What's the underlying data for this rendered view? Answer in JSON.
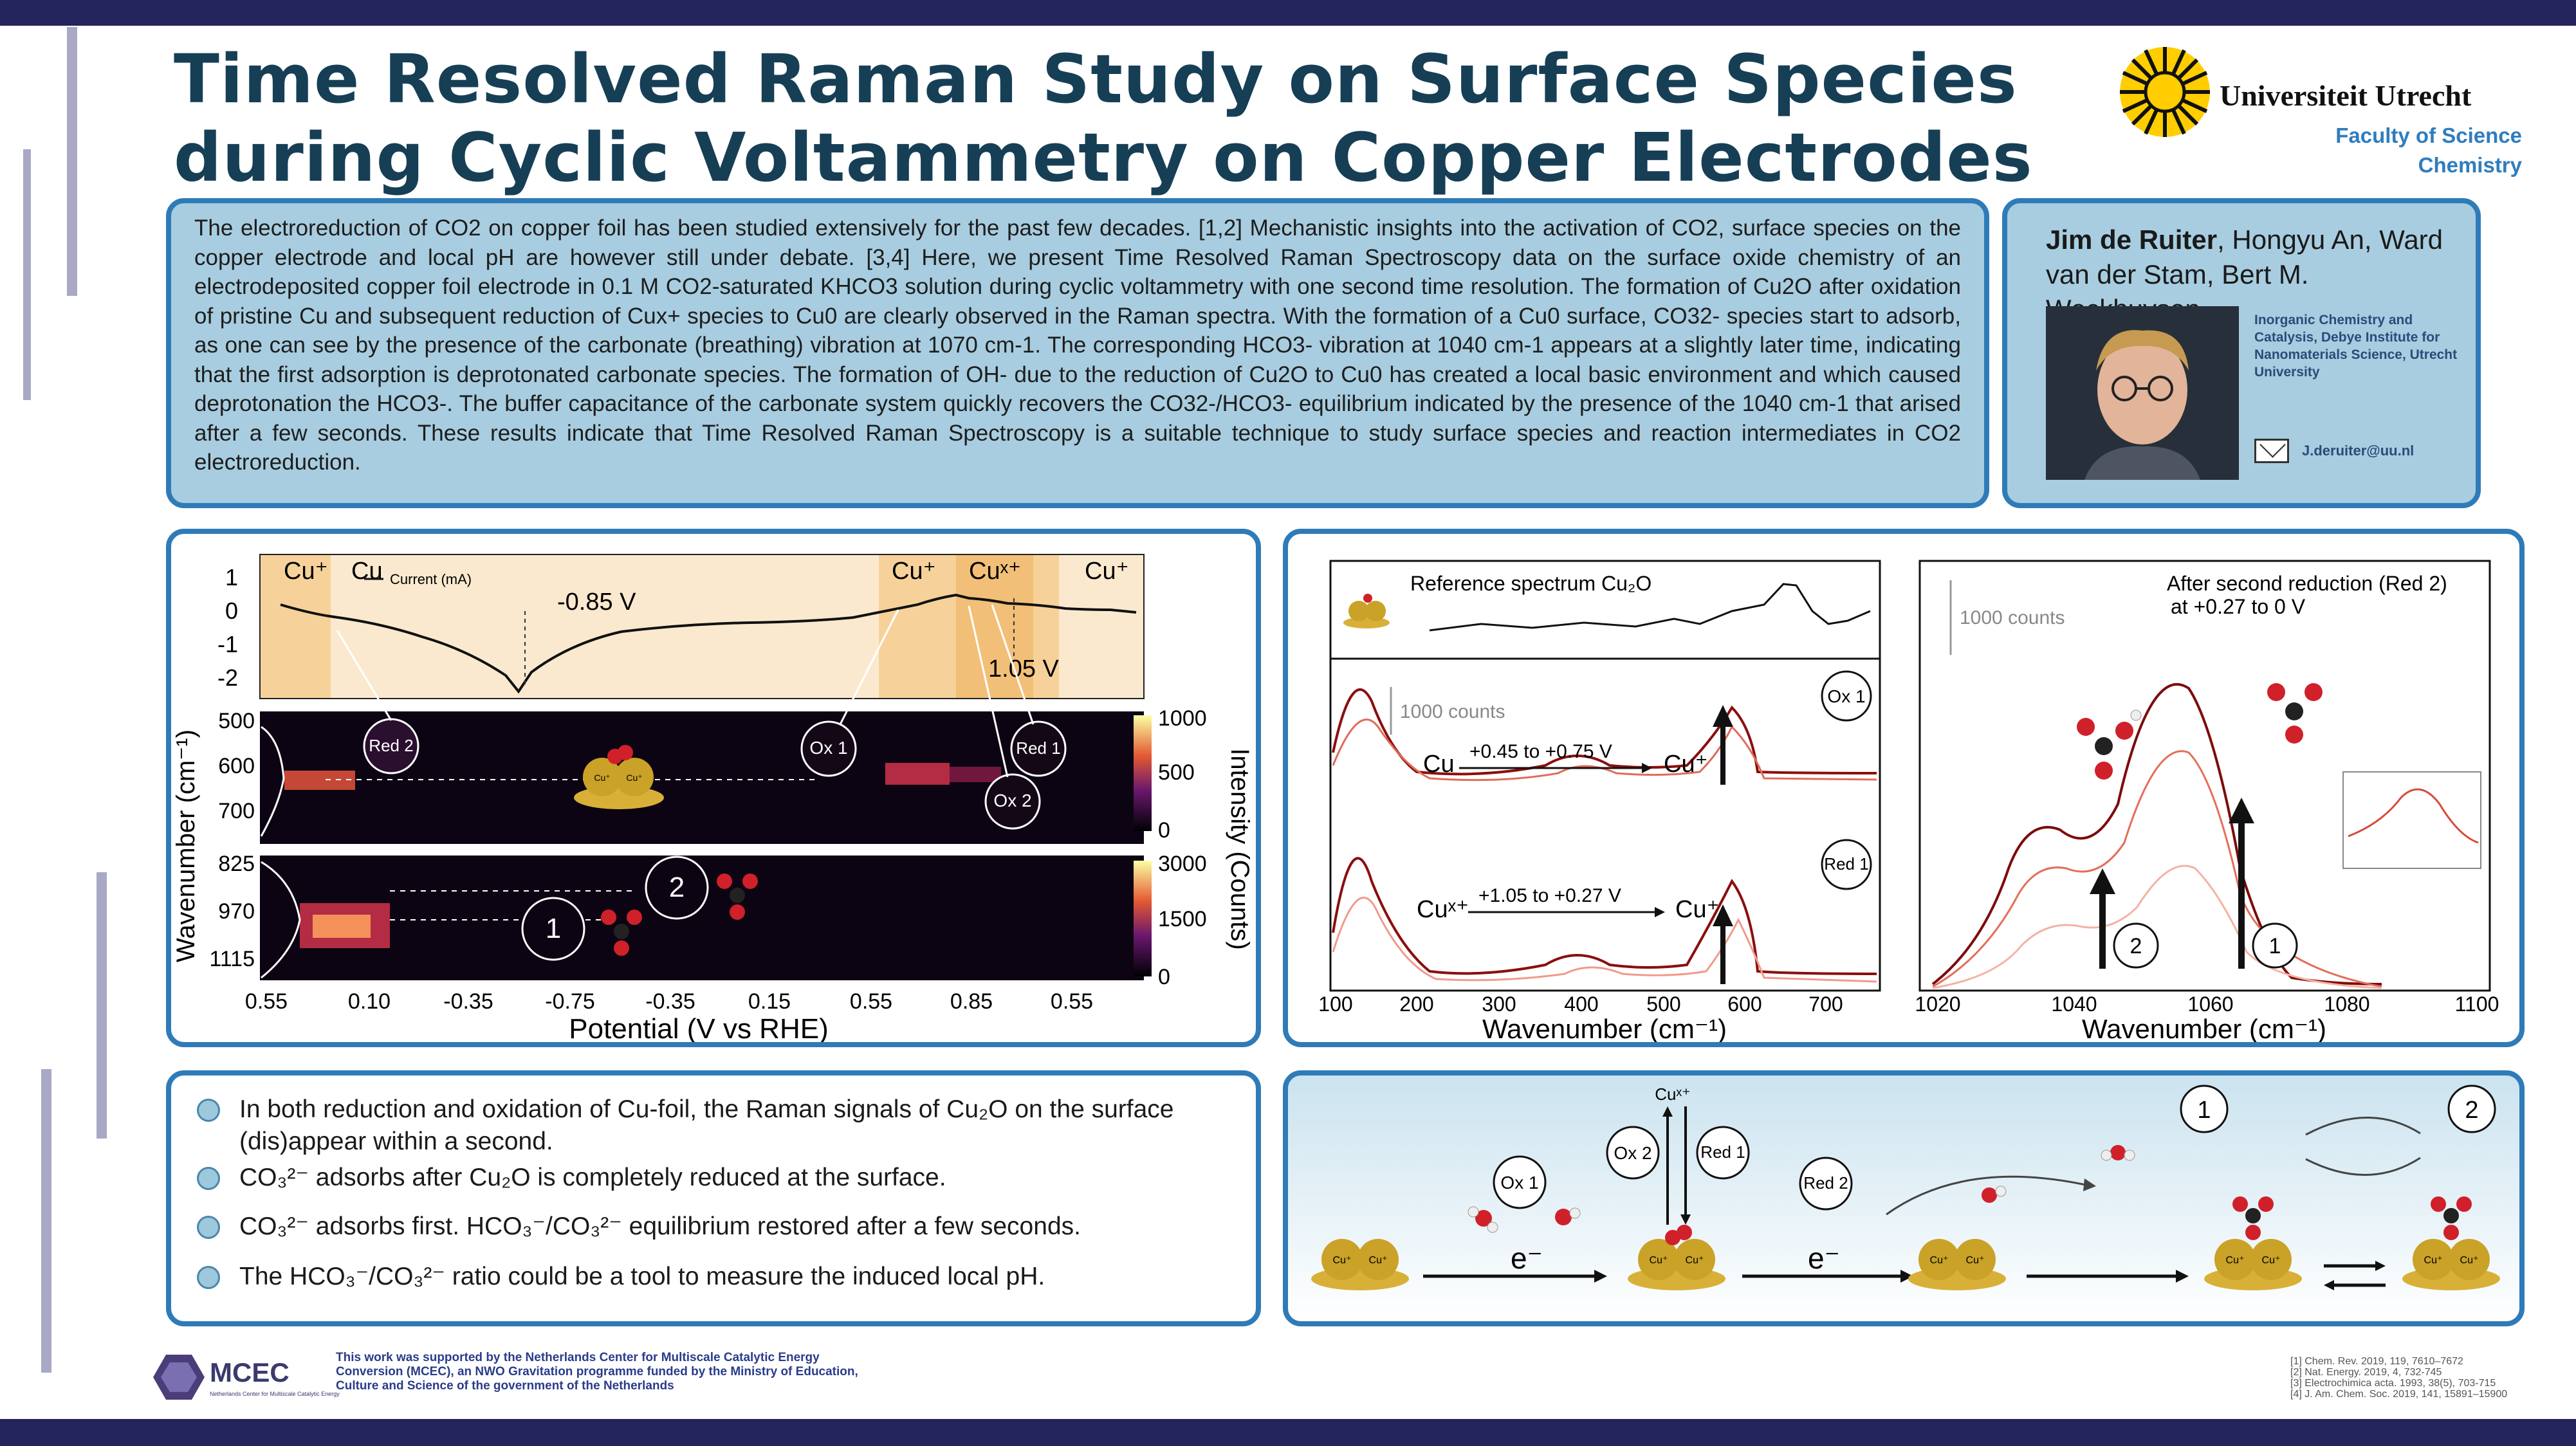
{
  "title": {
    "line1": "Time Resolved Raman Study on Surface Species",
    "line2": "during Cyclic Voltammetry on Copper Electrodes"
  },
  "logo": {
    "name": "Universiteit Utrecht",
    "faculty": "Faculty of Science",
    "department": "Chemistry"
  },
  "abstract": {
    "text": "The electroreduction of CO2 on copper foil has been studied extensively for the past few decades. [1,2]  Mechanistic insights into the activation of CO2, surface species on the copper electrode and local pH are however still under debate. [3,4]  Here, we present Time Resolved Raman Spectroscopy data on the surface oxide chemistry of an electrodeposited copper foil electrode in 0.1 M CO2-saturated KHCO3 solution during cyclic voltammetry with one second time resolution. The formation of Cu2O after oxidation of pristine Cu and subsequent reduction of Cux+ species to Cu0 are clearly observed in the Raman spectra. With the formation of a Cu0 surface, CO32- species start to adsorb, as one can see by the presence of the carbonate (breathing) vibration at 1070 cm-1. The corresponding HCO3- vibration at 1040 cm-1 appears at a slightly later time, indicating that the first adsorption is deprotonated carbonate species. The formation of OH- due to the reduction of Cu2O to Cu0 has created a local basic environment and which caused deprotonation the HCO3-. The buffer capacitance of the carbonate system quickly recovers the CO32-/HCO3- equilibrium indicated by the presence of the 1040 cm-1 that arised after a few seconds. These results indicate that Time Resolved Raman Spectroscopy is a suitable technique to study surface species and reaction intermediates in CO2 electroreduction."
  },
  "authors": {
    "lead": "Jim de Ruiter",
    "others": ", Hongyu An, Ward van der Stam, Bert M. Weckhuysen",
    "affiliation": "Inorganic Chemistry and Catalysis, Debye Institute for Nanomaterials Science, Utrecht University",
    "email": "J.deruiter@uu.nl"
  },
  "cv_panel": {
    "cv_labels": {
      "cu_plus_left": "Cu⁺",
      "cu_left": "Cu",
      "cu_plus_mid": "Cu⁺",
      "cu_xplus": "Cuˣ⁺",
      "cu_plus_right": "Cu⁺",
      "legend": "Current (mA)",
      "v1": "-0.85 V",
      "v2": "1.05 V"
    },
    "cv_yticks": [
      "1",
      "0",
      "-1",
      "-2"
    ],
    "map1_yticks": [
      "500",
      "600",
      "700"
    ],
    "map2_yticks": [
      "825",
      "970",
      "1115"
    ],
    "cb1": [
      "1000",
      "500",
      "0"
    ],
    "cb2": [
      "3000",
      "1500",
      "0"
    ],
    "xticks": [
      "0.55",
      "0.10",
      "-0.35",
      "-0.75",
      "-0.35",
      "0.15",
      "0.55",
      "0.85",
      "0.55"
    ],
    "xlabel": "Potential (V vs RHE)",
    "ylabel": "Wavenumber (cm⁻¹)",
    "cblabel": "Intensity (Counts)",
    "callouts": {
      "red2": "Red 2",
      "ox1": "Ox 1",
      "red1": "Red 1",
      "ox2": "Ox 2",
      "n1": "1",
      "n2": "2"
    },
    "cu_particle": "Cu⁺"
  },
  "spectra_panel": {
    "ref_label": "Reference spectrum Cu₂O",
    "ox1": "Ox 1",
    "red1": "Red 1",
    "counts1": "1000 counts",
    "counts2": "1000 counts",
    "ox_from": "Cu",
    "ox_range": "+0.45 to +0.75 V",
    "ox_to": "Cu⁺",
    "red_from": "Cuˣ⁺",
    "red_range": "+1.05 to +0.27 V",
    "red_to": "Cu⁺",
    "left_xticks": [
      "100",
      "200",
      "300",
      "400",
      "500",
      "600",
      "700"
    ],
    "right_xticks": [
      "1020",
      "1040",
      "1060",
      "1080",
      "1100"
    ],
    "xlabel": "Wavenumber (cm⁻¹)",
    "red2_title": "After second reduction (Red 2)",
    "red2_sub": "at +0.27 to 0 V",
    "n1": "1",
    "n2": "2"
  },
  "conclusions": [
    "In both reduction and oxidation of Cu-foil, the Raman signals of Cu₂O on the surface (dis)appear within a second.",
    "CO₃²⁻ adsorbs after Cu₂O is completely reduced at the surface.",
    "CO₃²⁻ adsorbs first. HCO₃⁻/CO₃²⁻ equilibrium restored after a few seconds.",
    "The HCO₃⁻/CO₃²⁻ ratio could be a tool to measure the induced local pH."
  ],
  "mechanism": {
    "cuxplus": "Cuˣ⁺",
    "ox1": "Ox 1",
    "ox2": "Ox 2",
    "red1": "Red 1",
    "red2": "Red 2",
    "e": "e⁻",
    "cu": "Cu⁺",
    "n1": "1",
    "n2": "2"
  },
  "footer": {
    "mcec": "MCEC",
    "mcec_sub": "Netherlands Center for Multiscale Catalytic Energy Conversion",
    "ack": "This work was supported by the Netherlands Center for Multiscale Catalytic Energy Conversion (MCEC), an NWO Gravitation programme funded by the Ministry of Education, Culture and Science of the government of the Netherlands",
    "refs": [
      "[1] Chem. Rev. 2019, 119, 7610–7672",
      "[2] Nat. Energy. 2019, 4, 732-745",
      "[3] Electrochimica acta. 1993, 38(5), 703-715",
      "[4] J. Am. Chem. Soc. 2019, 141, 15891–15900"
    ]
  },
  "colors": {
    "navy": "#24245c",
    "title": "#163f56",
    "blue_border": "#2f7bb8",
    "light_blue": "#a8cde0",
    "copper": "#c9a227",
    "peach": "#f6d29a"
  }
}
